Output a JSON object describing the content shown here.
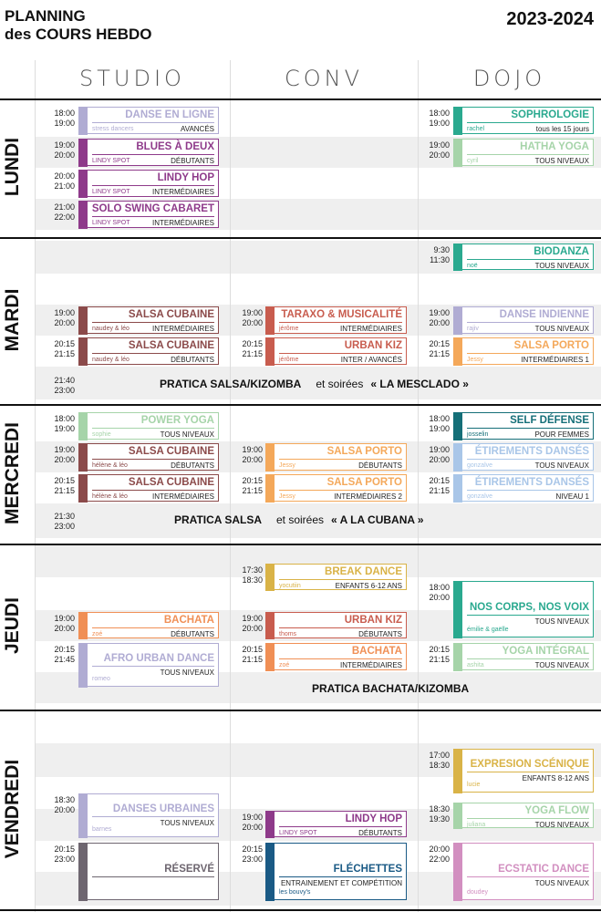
{
  "header": {
    "title_line1": "PLANNING",
    "title_line2": "des COURS HEBDO",
    "year": "2023-2024"
  },
  "columns": [
    "STUDIO",
    "CONV",
    "DOJO"
  ],
  "colors": {
    "lavender": "#b0acd3",
    "purple": "#8e3a8a",
    "teal": "#2aa98f",
    "lightgreen": "#a6d4a9",
    "brown": "#8b4a4a",
    "red": "#c85c4e",
    "orange": "#f4a85a",
    "darkteal": "#156f78",
    "lightblue": "#a9c6e8",
    "gold": "#d9b347",
    "salmon": "#f08f55",
    "grey": "#6e6670",
    "navy": "#1a5a85",
    "pink": "#d28fc0"
  },
  "days": [
    {
      "label": "LUNDI",
      "classes": [
        {
          "col": "studio",
          "start": "18:00",
          "end": "19:00",
          "name": "DANSE EN LIGNE",
          "teacher": "stress dancers",
          "level": "AVANCÉS",
          "color": "#b0acd3"
        },
        {
          "col": "dojo",
          "start": "18:00",
          "end": "19:00",
          "name": "SOPHROLOGIE",
          "teacher": "rachel",
          "level": "tous les 15 jours",
          "color": "#2aa98f"
        },
        {
          "col": "studio",
          "start": "19:00",
          "end": "20:00",
          "name": "BLUES À DEUX",
          "teacher": "LINDY SPOT",
          "level": "DÉBUTANTS",
          "color": "#8e3a8a"
        },
        {
          "col": "dojo",
          "start": "19:00",
          "end": "20:00",
          "name": "HATHA YOGA",
          "teacher": "cyril",
          "level": "TOUS NIVEAUX",
          "color": "#a6d4a9"
        },
        {
          "col": "studio",
          "start": "20:00",
          "end": "21:00",
          "name": "LINDY HOP",
          "teacher": "LINDY SPOT",
          "level": "INTERMÉDIAIRES",
          "color": "#8e3a8a"
        },
        {
          "col": "studio",
          "start": "21:00",
          "end": "22:00",
          "name": "SOLO SWING CABARET",
          "teacher": "LINDY SPOT",
          "level": "INTERMÉDIAIRES",
          "color": "#8e3a8a"
        }
      ]
    },
    {
      "label": "MARDI",
      "classes": [
        {
          "col": "dojo",
          "start": "9:30",
          "end": "11:30",
          "name": "BIODANZA",
          "teacher": "noë",
          "level": "TOUS NIVEAUX",
          "color": "#2aa98f"
        },
        {
          "col": "studio",
          "start": "19:00",
          "end": "20:00",
          "name": "SALSA CUBAINE",
          "teacher": "naudey & léo",
          "level": "INTERMÉDIAIRES",
          "color": "#8b4a4a"
        },
        {
          "col": "conv",
          "start": "19:00",
          "end": "20:00",
          "name": "TARAXO & MUSICALITÉ",
          "teacher": "jérôme",
          "level": "INTERMÉDIAIRES",
          "color": "#c85c4e"
        },
        {
          "col": "dojo",
          "start": "19:00",
          "end": "20:00",
          "name": "DANSE INDIENNE",
          "teacher": "rajiv",
          "level": "TOUS NIVEAUX",
          "color": "#b0acd3"
        },
        {
          "col": "studio",
          "start": "20:15",
          "end": "21:15",
          "name": "SALSA CUBAINE",
          "teacher": "naudey & léo",
          "level": "DÉBUTANTS",
          "color": "#8b4a4a"
        },
        {
          "col": "conv",
          "start": "20:15",
          "end": "21:15",
          "name": "URBAN KIZ",
          "teacher": "jérôme",
          "level": "INTER / AVANCÉS",
          "color": "#c85c4e"
        },
        {
          "col": "dojo",
          "start": "20:15",
          "end": "21:15",
          "name": "SALSA PORTO",
          "teacher": "Jessy",
          "level": "INTERMÉDIAIRES 1",
          "color": "#f4a85a"
        }
      ],
      "pratica": {
        "start": "21:40",
        "end": "23:00",
        "main": "PRATICA  SALSA/KIZOMBA",
        "mid": "et soirées",
        "event": "« LA MESCLADO »"
      }
    },
    {
      "label": "MERCREDI",
      "classes": [
        {
          "col": "studio",
          "start": "18:00",
          "end": "19:00",
          "name": "POWER YOGA",
          "teacher": "sophie",
          "level": "TOUS NIVEAUX",
          "color": "#a6d4a9"
        },
        {
          "col": "dojo",
          "start": "18:00",
          "end": "19:00",
          "name": "SELF DÉFENSE",
          "teacher": "josselin",
          "level": "POUR FEMMES",
          "color": "#156f78"
        },
        {
          "col": "studio",
          "start": "19:00",
          "end": "20:00",
          "name": "SALSA CUBAINE",
          "teacher": "hélène & léo",
          "level": "DÉBUTANTS",
          "color": "#8b4a4a"
        },
        {
          "col": "conv",
          "start": "19:00",
          "end": "20:00",
          "name": "SALSA PORTO",
          "teacher": "Jessy",
          "level": "DÉBUTANTS",
          "color": "#f4a85a"
        },
        {
          "col": "dojo",
          "start": "19:00",
          "end": "20:00",
          "name": "ÉTIREMENTS DANSÉS",
          "teacher": "gonzalve",
          "level": "TOUS NIVEAUX",
          "color": "#a9c6e8"
        },
        {
          "col": "studio",
          "start": "20:15",
          "end": "21:15",
          "name": "SALSA CUBAINE",
          "teacher": "hélène & léo",
          "level": "INTERMÉDIAIRES",
          "color": "#8b4a4a"
        },
        {
          "col": "conv",
          "start": "20:15",
          "end": "21:15",
          "name": "SALSA PORTO",
          "teacher": "Jessy",
          "level": "INTERMÉDIAIRES 2",
          "color": "#f4a85a"
        },
        {
          "col": "dojo",
          "start": "20:15",
          "end": "21:15",
          "name": "ÉTIREMENTS DANSÉS",
          "teacher": "gonzalve",
          "level": "NIVEAU 1",
          "color": "#a9c6e8"
        }
      ],
      "pratica": {
        "start": "21:30",
        "end": "23:00",
        "main": "PRATICA  SALSA",
        "mid": "et soirées",
        "event": "« A LA CUBANA »"
      }
    },
    {
      "label": "JEUDI",
      "classes": [
        {
          "col": "conv",
          "start": "17:30",
          "end": "18:30",
          "name": "BREAK DANCE",
          "teacher": "yocutiin",
          "level": "ENFANTS  6-12 ANS",
          "color": "#d9b347"
        },
        {
          "col": "dojo",
          "start": "18:00",
          "end": "20:00",
          "name": "NOS CORPS, NOS VOIX",
          "teacher": "émilie & gaëlle",
          "level": "TOUS NIVEAUX",
          "color": "#2aa98f"
        },
        {
          "col": "studio",
          "start": "19:00",
          "end": "20:00",
          "name": "BACHATA",
          "teacher": "zoé",
          "level": "DÉBUTANTS",
          "color": "#f08f55"
        },
        {
          "col": "conv",
          "start": "19:00",
          "end": "20:00",
          "name": "URBAN KIZ",
          "teacher": "thoms",
          "level": "DÉBUTANTS",
          "color": "#c85c4e"
        },
        {
          "col": "studio",
          "start": "20:15",
          "end": "21:45",
          "name": "AFRO URBAN DANCE",
          "teacher": "romeo",
          "level": "TOUS NIVEAUX",
          "color": "#b0acd3"
        },
        {
          "col": "conv",
          "start": "20:15",
          "end": "21:15",
          "name": "BACHATA",
          "teacher": "zoé",
          "level": "INTERMÉDIAIRES",
          "color": "#f08f55"
        },
        {
          "col": "dojo",
          "start": "20:15",
          "end": "21:15",
          "name": "YOGA INTÉGRAL",
          "teacher": "ashita",
          "level": "TOUS NIVEAUX",
          "color": "#a6d4a9"
        }
      ],
      "pratica": {
        "main": "PRATICA  BACHATA/KIZOMBA"
      }
    },
    {
      "label": "VENDREDI",
      "classes": [
        {
          "col": "dojo",
          "start": "17:00",
          "end": "18:30",
          "name": "EXPRESION SCÉNIQUE",
          "teacher": "lucie",
          "level": "ENFANTS  8-12 ANS",
          "color": "#d9b347"
        },
        {
          "col": "studio",
          "start": "18:30",
          "end": "20:00",
          "name": "DANSES URBAINES",
          "teacher": "barnes",
          "level": "TOUS NIVEAUX",
          "color": "#b0acd3"
        },
        {
          "col": "dojo",
          "start": "18:30",
          "end": "19:30",
          "name": "YOGA FLOW",
          "teacher": "juliana",
          "level": "TOUS NIVEAUX",
          "color": "#a6d4a9"
        },
        {
          "col": "conv",
          "start": "19:00",
          "end": "20:00",
          "name": "LINDY HOP",
          "teacher": "LINDY SPOT",
          "level": "DÉBUTANTS",
          "color": "#8e3a8a"
        },
        {
          "col": "studio",
          "start": "20:15",
          "end": "23:00",
          "name": "RÉSERVÉ",
          "color": "#6e6670"
        },
        {
          "col": "conv",
          "start": "20:15",
          "end": "23:00",
          "name": "FLÉCHETTES",
          "teacher": "les bouvy's",
          "level": "ENTRAINEMENT ET COMPÉTITION",
          "color": "#1a5a85"
        },
        {
          "col": "dojo",
          "start": "20:00",
          "end": "22:00",
          "name": "ECSTATIC DANCE",
          "teacher": "doudey",
          "level": "TOUS NIVEAUX",
          "color": "#d28fc0"
        }
      ]
    }
  ]
}
